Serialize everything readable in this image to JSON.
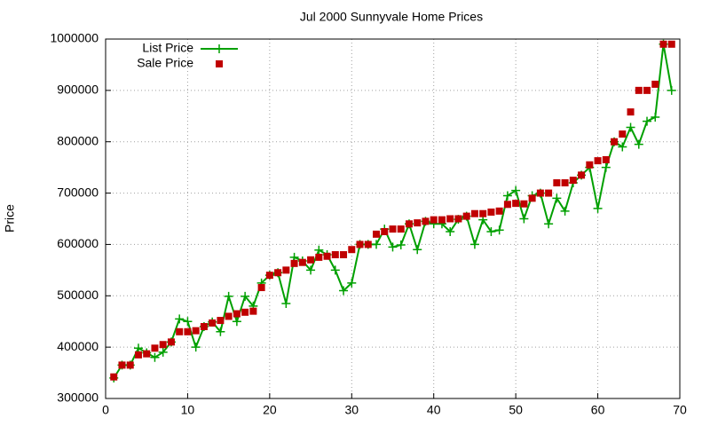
{
  "chart_data": {
    "type": "line",
    "title": "Jul 2000 Sunnyvale Home Prices",
    "y_label": "Price",
    "x": [
      1,
      2,
      3,
      4,
      5,
      6,
      7,
      8,
      9,
      10,
      11,
      12,
      13,
      14,
      15,
      16,
      17,
      18,
      19,
      20,
      21,
      22,
      23,
      24,
      25,
      26,
      27,
      28,
      29,
      30,
      31,
      32,
      33,
      34,
      35,
      36,
      37,
      38,
      39,
      40,
      41,
      42,
      43,
      44,
      45,
      46,
      47,
      48,
      49,
      50,
      51,
      52,
      53,
      54,
      55,
      56,
      57,
      58,
      59,
      60,
      61,
      62,
      63,
      64,
      65,
      66,
      67,
      68,
      69
    ],
    "series": [
      {
        "name": "List Price",
        "color": "#00a000",
        "mode": "linespoints",
        "values": [
          340000,
          365000,
          365000,
          398000,
          389000,
          380000,
          390000,
          410000,
          455000,
          450000,
          400000,
          440000,
          449000,
          430000,
          499000,
          450000,
          499000,
          480000,
          525000,
          540000,
          545000,
          485000,
          575000,
          568000,
          550000,
          589000,
          580000,
          550000,
          510000,
          525000,
          600000,
          600000,
          600000,
          630000,
          595000,
          599000,
          640000,
          590000,
          645000,
          640000,
          640000,
          625000,
          649000,
          655000,
          600000,
          648000,
          625000,
          628000,
          695000,
          705000,
          650000,
          695000,
          700000,
          640000,
          690000,
          665000,
          720000,
          735000,
          750000,
          670000,
          750000,
          800000,
          790000,
          828000,
          795000,
          840000,
          848000,
          990000,
          900000
        ]
      },
      {
        "name": "Sale Price",
        "color": "#c00000",
        "mode": "points",
        "values": [
          342000,
          365000,
          365000,
          385000,
          387000,
          398000,
          405000,
          410000,
          430000,
          430000,
          432000,
          440000,
          447000,
          452000,
          460000,
          465000,
          468000,
          470000,
          516000,
          540000,
          545000,
          550000,
          563000,
          565000,
          570000,
          575000,
          577000,
          580000,
          580000,
          590000,
          600000,
          600000,
          620000,
          625000,
          630000,
          630000,
          640000,
          642000,
          645000,
          648000,
          648000,
          650000,
          650000,
          655000,
          660000,
          660000,
          663000,
          665000,
          678000,
          680000,
          679000,
          690000,
          700000,
          700000,
          720000,
          720000,
          725000,
          735000,
          755000,
          763000,
          765000,
          800000,
          815000,
          858000,
          900000,
          900000,
          912000,
          990000,
          990000
        ]
      }
    ],
    "xlim": [
      0,
      70
    ],
    "xticks": [
      0,
      10,
      20,
      30,
      40,
      50,
      60,
      70
    ],
    "ylim": [
      300000,
      1000000
    ],
    "yticks": [
      300000,
      400000,
      500000,
      600000,
      700000,
      800000,
      900000,
      1000000
    ],
    "grid": true,
    "legend": "top-left"
  }
}
